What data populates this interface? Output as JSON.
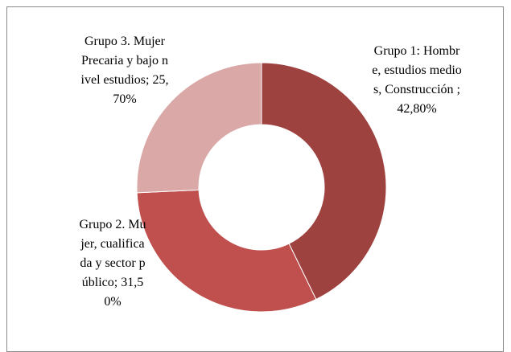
{
  "chart_data": {
    "type": "donut",
    "categories": [
      "Grupo 1: Hombre, estudios medios, Construcción ;",
      "Grupo 2. Mujer, cualificada y sector público;",
      "Grupo 3. Mujer Precaria y bajo nivel estudios;"
    ],
    "values": [
      42.8,
      31.5,
      25.7
    ],
    "value_labels": [
      "42,80%",
      "31,50%",
      "25,70%"
    ],
    "colors": [
      "#9e4240",
      "#c0504d",
      "#d9a8a7"
    ]
  }
}
